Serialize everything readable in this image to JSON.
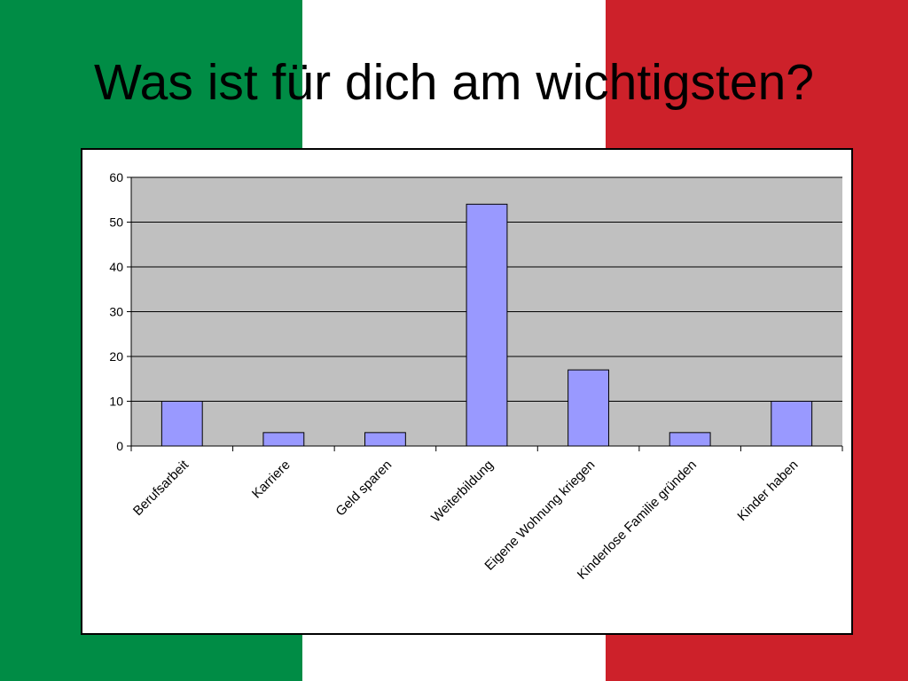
{
  "slide": {
    "title": "Was ist für dich am wichtigsten?",
    "flag_colors": {
      "green": "#008c45",
      "white": "#ffffff",
      "red": "#cd212a"
    }
  },
  "chart_data": {
    "type": "bar",
    "categories": [
      "Berufsarbeit",
      "Karriere",
      "Geld sparen",
      "Weiterbildung",
      "Eigene Wohnung kriegen",
      "Kinderlose Familie gründen",
      "Kinder haben"
    ],
    "values": [
      10,
      3,
      3,
      54,
      17,
      3,
      10
    ],
    "title": "",
    "xlabel": "",
    "ylabel": "",
    "ylim": [
      0,
      60
    ],
    "yticks": [
      0,
      10,
      20,
      30,
      40,
      50,
      60
    ],
    "grid": true,
    "colors": {
      "bar": "#9999ff",
      "plot_bg": "#c0c0c0",
      "gridline": "#000000"
    }
  }
}
